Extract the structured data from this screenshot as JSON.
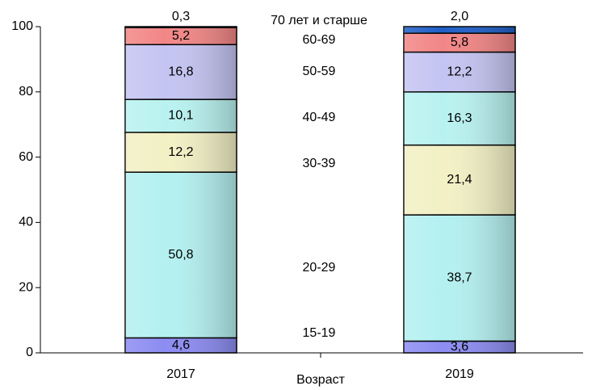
{
  "chart_data": {
    "type": "stacked_bar",
    "x_label": "Возраст",
    "categories": [
      "2017",
      "2019"
    ],
    "ylim": [
      0,
      100
    ],
    "yticks": [
      0,
      20,
      40,
      60,
      80,
      100
    ],
    "series": [
      {
        "name": "15-19",
        "color": "#8c8cf2",
        "values": [
          4.6,
          3.6
        ],
        "value_labels": [
          "4,6",
          "3,6"
        ]
      },
      {
        "name": "20-29",
        "color": "#b4f0f0",
        "values": [
          50.8,
          38.7
        ],
        "value_labels": [
          "50,8",
          "38,7"
        ]
      },
      {
        "name": "30-39",
        "color": "#f2f0c4",
        "values": [
          12.2,
          21.4
        ],
        "value_labels": [
          "12,2",
          "21,4"
        ]
      },
      {
        "name": "40-49",
        "color": "#b8f2f0",
        "values": [
          10.1,
          16.3
        ],
        "value_labels": [
          "10,1",
          "16,3"
        ]
      },
      {
        "name": "50-59",
        "color": "#c4c4f2",
        "values": [
          16.8,
          12.2
        ],
        "value_labels": [
          "16,8",
          "12,2"
        ]
      },
      {
        "name": "60-69",
        "color": "#f28686",
        "values": [
          5.2,
          5.8
        ],
        "value_labels": [
          "5,2",
          "5,8"
        ]
      },
      {
        "name": "70 лет и старше",
        "color": "#1f5fc8",
        "values": [
          0.3,
          2.0
        ],
        "value_labels": [
          "0,3",
          "2,0"
        ]
      }
    ]
  }
}
